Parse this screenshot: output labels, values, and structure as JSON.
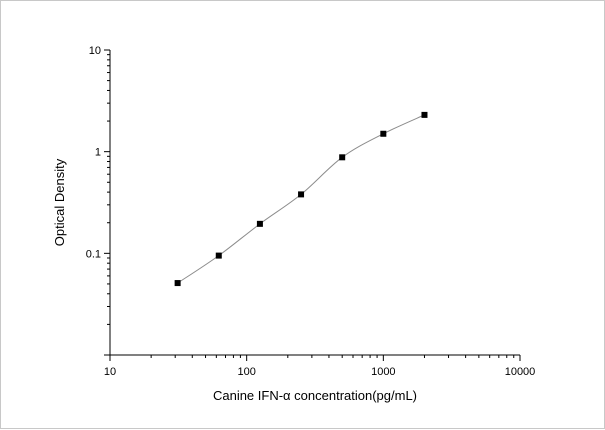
{
  "chart_data": {
    "type": "scatter",
    "title": "",
    "xlabel": "Canine IFN-α  concentration(pg/mL)",
    "ylabel": "Optical Density",
    "xscale": "log",
    "yscale": "log",
    "xlim": [
      10,
      10000
    ],
    "ylim": [
      0.01,
      10
    ],
    "xticks": [
      {
        "value": 10,
        "label": "10"
      },
      {
        "value": 100,
        "label": "100"
      },
      {
        "value": 1000,
        "label": "1000"
      },
      {
        "value": 10000,
        "label": "10000"
      }
    ],
    "yticks": [
      {
        "value": 0.1,
        "label": "0.1"
      },
      {
        "value": 1,
        "label": "1"
      },
      {
        "value": 10,
        "label": "10"
      }
    ],
    "grid": false,
    "series": [
      {
        "marker": "square",
        "color": "#000000",
        "x": [
          31.25,
          62.5,
          125,
          250,
          500,
          1000,
          2000
        ],
        "y": [
          0.051,
          0.095,
          0.195,
          0.38,
          0.88,
          1.5,
          2.3
        ]
      }
    ],
    "fit_curve": {
      "color": "#8c8c8c",
      "x": [
        31.25,
        62.5,
        125,
        250,
        500,
        1000,
        2000
      ],
      "y": [
        0.051,
        0.095,
        0.195,
        0.38,
        0.88,
        1.5,
        2.3
      ]
    }
  }
}
